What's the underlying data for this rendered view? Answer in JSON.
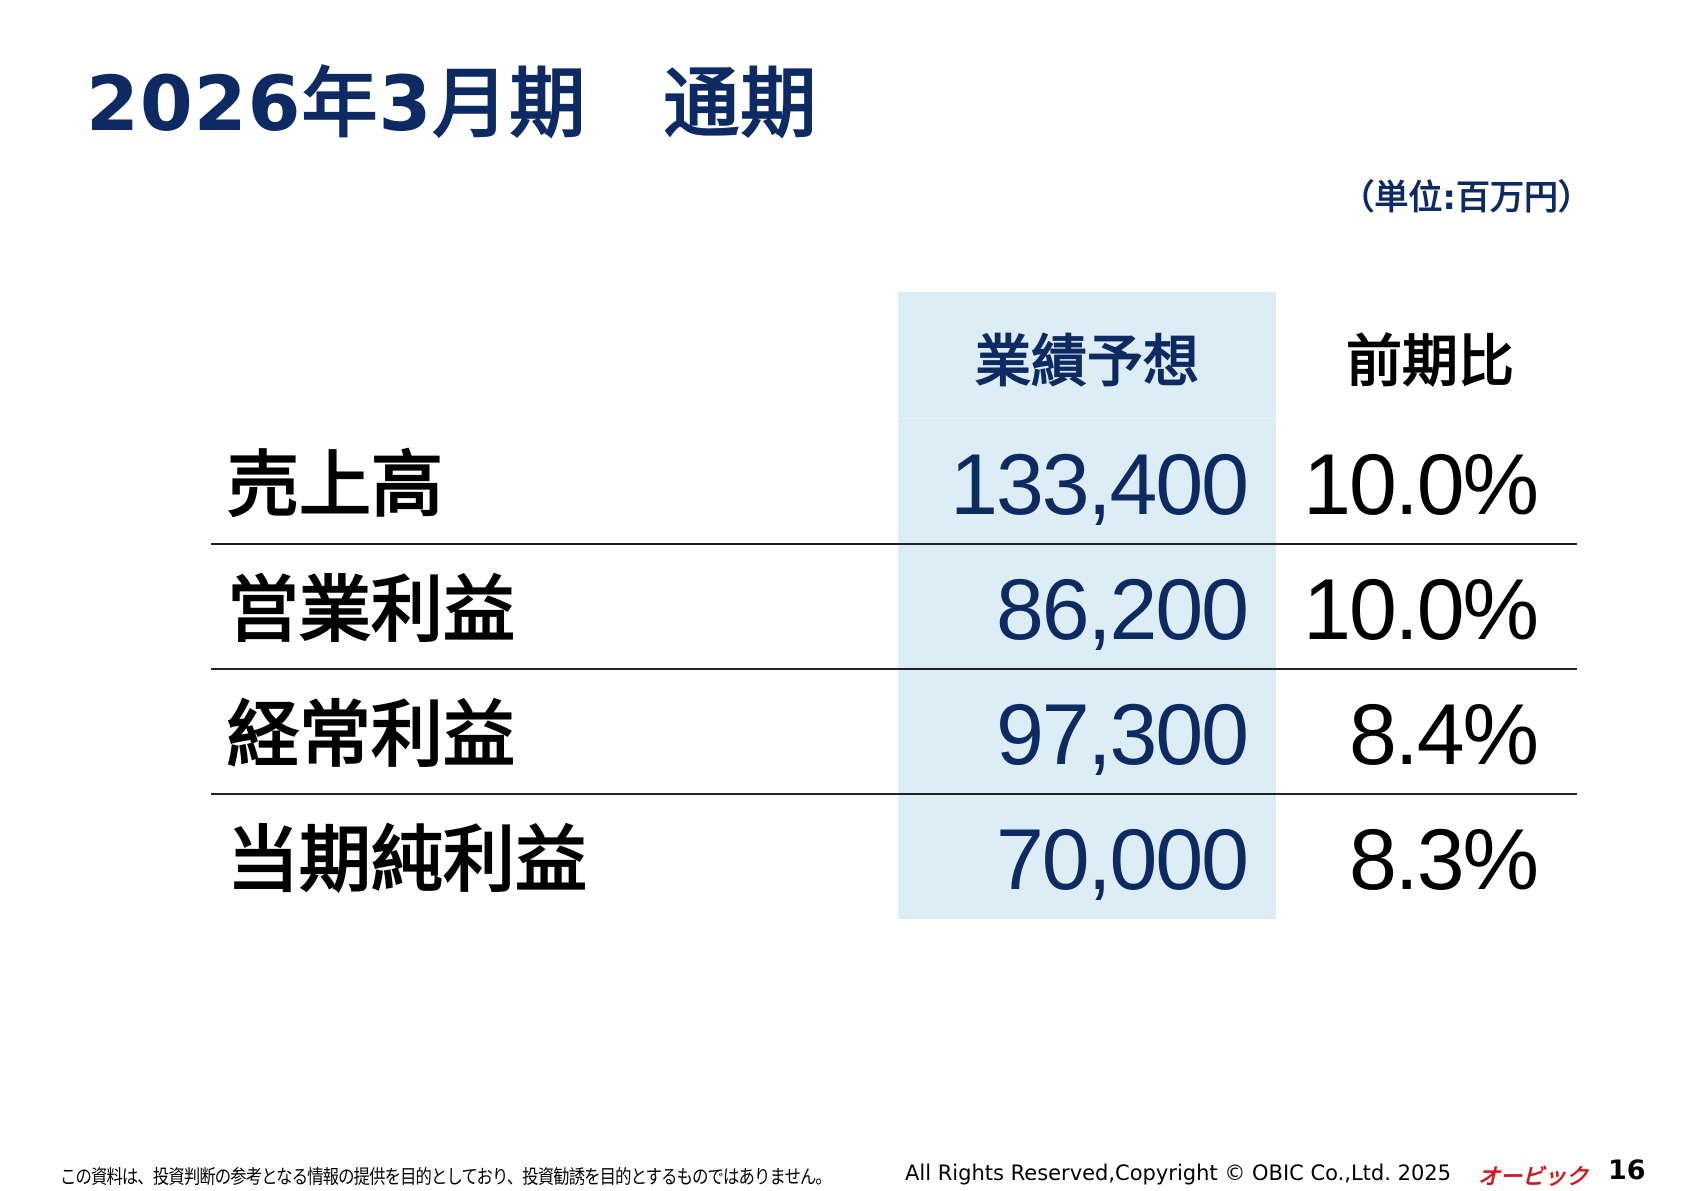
{
  "title": "2026年3月期　通期",
  "unit": "（単位:百万円）",
  "table": {
    "headers": {
      "forecast": "業績予想",
      "yoy": "前期比"
    },
    "rows": [
      {
        "label": "売上高",
        "forecast": "133,400",
        "yoy": "10.0%"
      },
      {
        "label": "営業利益",
        "forecast": "86,200",
        "yoy": "10.0%"
      },
      {
        "label": "経常利益",
        "forecast": "97,300",
        "yoy": "8.4%"
      },
      {
        "label": "当期純利益",
        "forecast": "70,000",
        "yoy": "8.3%"
      }
    ]
  },
  "footer": {
    "disclaimer": "この資料は、投資判断の参考となる情報の提供を目的としており、投資勧誘を目的とするものではありません。",
    "copyright": "All Rights Reserved,Copyright © OBIC Co.,Ltd. 2025",
    "logo": "オービック",
    "page": "16"
  },
  "colors": {
    "title": "#0d2a63",
    "shade": "#dcedf5",
    "logo": "#d8141c"
  }
}
